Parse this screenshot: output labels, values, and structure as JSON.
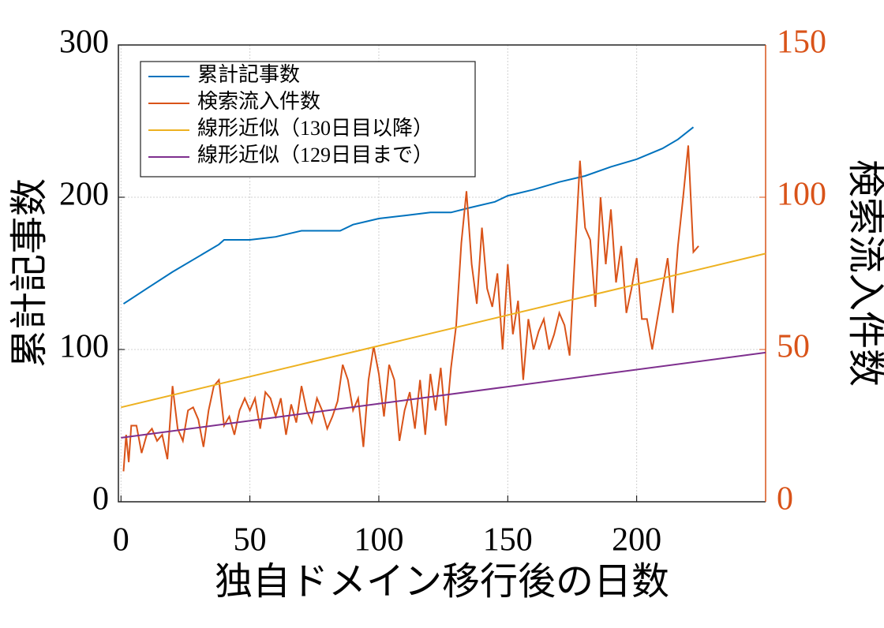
{
  "chart_data": {
    "type": "line",
    "xlabel": "独自ドメイン移行後の日数",
    "ylabel": "累計記事数",
    "y2label": "検索流入件数",
    "xlim": [
      -1,
      250
    ],
    "xticks": [
      0,
      50,
      100,
      150,
      200
    ],
    "ylim": [
      0,
      300
    ],
    "yticks": [
      0,
      100,
      200,
      300
    ],
    "y2lim": [
      0,
      150
    ],
    "y2ticks": [
      0,
      50,
      100,
      150
    ],
    "y2color": "#d95319",
    "grid": true,
    "legend": "upper left",
    "series": [
      {
        "name": "累計記事数",
        "color": "#0072bd",
        "x": [
          1,
          10,
          20,
          30,
          38,
          40,
          50,
          55,
          60,
          65,
          70,
          75,
          85,
          90,
          95,
          100,
          110,
          120,
          128,
          135,
          145,
          150,
          160,
          170,
          180,
          190,
          200,
          210,
          216,
          222
        ],
        "values": [
          130,
          140,
          151,
          161,
          169,
          172,
          172,
          173,
          174,
          176,
          178,
          178,
          178,
          182,
          184,
          186,
          188,
          190,
          190,
          193,
          197,
          201,
          205,
          210,
          214,
          220,
          225,
          232,
          238,
          246
        ]
      },
      {
        "name": "検索流入件数",
        "color": "#d95319",
        "axis": "y2",
        "x": [
          1,
          2,
          3,
          4,
          5,
          6,
          8,
          10,
          12,
          14,
          16,
          18,
          20,
          22,
          24,
          26,
          28,
          30,
          32,
          34,
          36,
          38,
          40,
          42,
          44,
          46,
          48,
          50,
          52,
          54,
          56,
          58,
          60,
          62,
          64,
          66,
          68,
          70,
          72,
          74,
          76,
          78,
          80,
          82,
          84,
          86,
          88,
          90,
          92,
          94,
          96,
          98,
          100,
          102,
          104,
          106,
          108,
          110,
          112,
          114,
          116,
          118,
          120,
          122,
          124,
          126,
          128,
          130,
          132,
          134,
          136,
          138,
          140,
          142,
          144,
          146,
          148,
          150,
          152,
          154,
          156,
          158,
          160,
          162,
          164,
          166,
          168,
          170,
          172,
          174,
          176,
          178,
          180,
          182,
          184,
          186,
          188,
          190,
          192,
          194,
          196,
          198,
          200,
          202,
          204,
          206,
          208,
          210,
          212,
          214,
          216,
          218,
          220,
          222,
          224
        ],
        "values": [
          10,
          22,
          13,
          25,
          25,
          25,
          16,
          22,
          24,
          20,
          22,
          14,
          38,
          24,
          20,
          30,
          31,
          27,
          18,
          30,
          38,
          40,
          25,
          28,
          22,
          30,
          34,
          30,
          34,
          24,
          36,
          34,
          28,
          34,
          22,
          32,
          26,
          38,
          30,
          26,
          34,
          30,
          24,
          28,
          33,
          45,
          40,
          30,
          34,
          18,
          40,
          51,
          42,
          28,
          45,
          40,
          20,
          30,
          36,
          24,
          40,
          22,
          42,
          30,
          44,
          25,
          44,
          58,
          85,
          102,
          78,
          65,
          90,
          70,
          64,
          75,
          50,
          78,
          55,
          66,
          40,
          60,
          50,
          56,
          60,
          50,
          55,
          62,
          58,
          48,
          80,
          112,
          90,
          86,
          64,
          100,
          78,
          96,
          72,
          84,
          62,
          70,
          80,
          60,
          60,
          50,
          60,
          70,
          80,
          62,
          84,
          100,
          117,
          82,
          84
        ]
      },
      {
        "name": "線形近似（130日目以降）",
        "color": "#edb120",
        "axis": "y2",
        "x": [
          0,
          250
        ],
        "values": [
          31,
          81.5
        ]
      },
      {
        "name": "線形近似（129日目まで）",
        "color": "#7e2f8e",
        "axis": "y2",
        "x": [
          0,
          250
        ],
        "values": [
          21,
          49
        ]
      }
    ]
  }
}
